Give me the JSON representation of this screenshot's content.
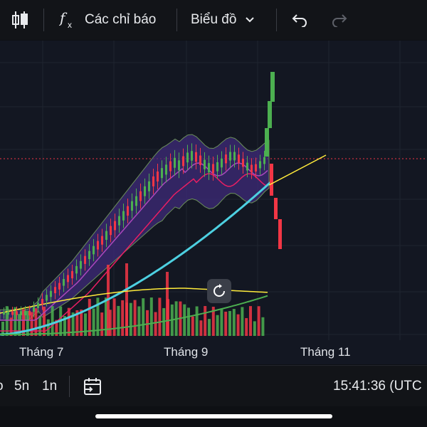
{
  "toolbar": {
    "indicators_label": "Các chỉ báo",
    "chart_type_label": "Biểu đồ",
    "icons": [
      "candlestick-icon",
      "function-icon",
      "chevron-down-icon",
      "undo-icon",
      "redo-icon"
    ]
  },
  "chart": {
    "x_ticks": [
      "Tháng 7",
      "Tháng 9",
      "Tháng 11"
    ],
    "colors": {
      "up": "#4caf50",
      "down": "#f23645",
      "ma_fast": "#e91e63",
      "ma_slow": "#ab47bc",
      "ma_long": "#4dd0e1",
      "trend": "#ffeb3b",
      "band": "#3f2b7a",
      "volume_ma": "#ffeb3b",
      "volume_ma_long": "#4caf50"
    }
  },
  "bottombar": {
    "intervals": [
      "5n",
      "1n"
    ],
    "clock": "15:41:36 (UTC"
  }
}
